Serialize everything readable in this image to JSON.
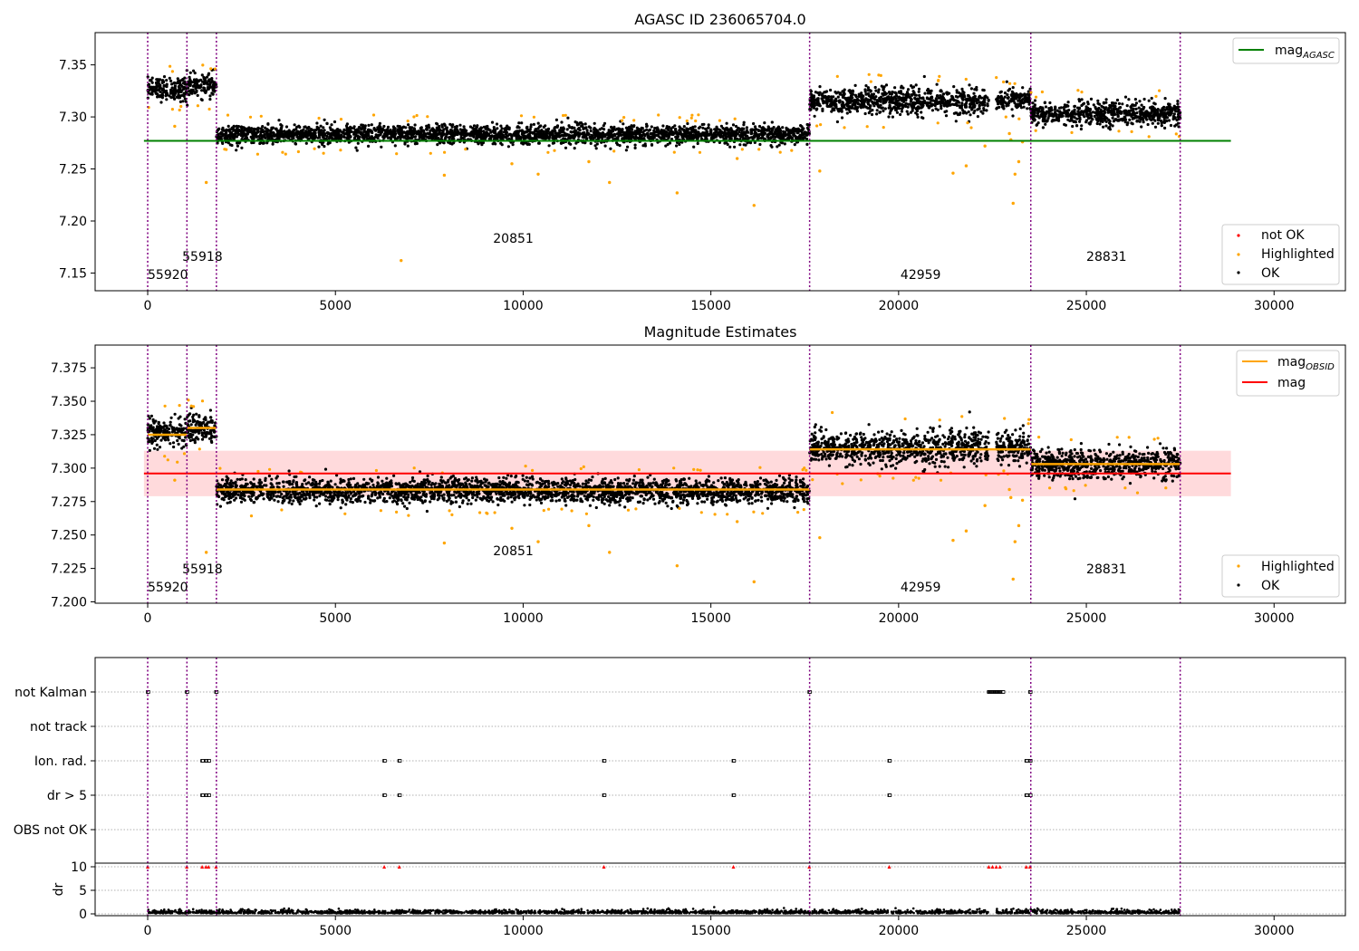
{
  "colors": {
    "ok": "#000000",
    "highlighted": "#ffa500",
    "not_ok": "#ff0000",
    "agasc_line": "#008000",
    "mag_line": "#ff0000",
    "mag_band": "#ffdadc",
    "obsid_line": "#ffa500",
    "obs_boundary": "#800080",
    "grid": "#b0b0b0"
  },
  "obs_boundaries": [
    0,
    1045,
    1830,
    17630,
    23520,
    27500
  ],
  "obsids": [
    {
      "label": "55920",
      "x": 0,
      "level": "low"
    },
    {
      "label": "55918",
      "x": 920,
      "level": "mid"
    },
    {
      "label": "20851",
      "x": 9200,
      "level": "high"
    },
    {
      "label": "42959",
      "x": 20050,
      "level": "low"
    },
    {
      "label": "28831",
      "x": 25000,
      "level": "mid"
    }
  ],
  "chart_data": [
    {
      "type": "scatter",
      "title": "AGASC ID 236065704.0",
      "xlim": [
        -1400,
        31900
      ],
      "ylim": [
        7.133,
        7.381
      ],
      "x_ticks": [
        0,
        5000,
        10000,
        15000,
        20000,
        25000,
        30000
      ],
      "x_tick_labels": [
        "0",
        "5000",
        "10000",
        "15000",
        "20000",
        "25000",
        "30000"
      ],
      "y_ticks": [
        7.15,
        7.2,
        7.25,
        7.3,
        7.35
      ],
      "y_tick_labels": [
        "7.15",
        "7.20",
        "7.25",
        "7.30",
        "7.35"
      ],
      "segments": [
        {
          "x": [
            0,
            1045
          ],
          "mean": 7.327,
          "spread": 0.006
        },
        {
          "x": [
            1045,
            1830
          ],
          "mean": 7.33,
          "spread": 0.006
        },
        {
          "x": [
            1830,
            17630
          ],
          "mean": 7.283,
          "spread": 0.005
        },
        {
          "x": [
            17630,
            22400
          ],
          "mean": 7.315,
          "spread": 0.007
        },
        {
          "x": [
            22600,
            23520
          ],
          "mean": 7.316,
          "spread": 0.006
        },
        {
          "x": [
            23520,
            27500
          ],
          "mean": 7.303,
          "spread": 0.006
        }
      ],
      "highlighted_outliers": [
        [
          720,
          7.291
        ],
        [
          1560,
          7.237
        ],
        [
          6750,
          7.162
        ],
        [
          7900,
          7.244
        ],
        [
          9700,
          7.255
        ],
        [
          10400,
          7.245
        ],
        [
          11750,
          7.257
        ],
        [
          12300,
          7.237
        ],
        [
          14100,
          7.227
        ],
        [
          15700,
          7.26
        ],
        [
          16150,
          7.215
        ],
        [
          17900,
          7.248
        ],
        [
          21450,
          7.246
        ],
        [
          21800,
          7.253
        ],
        [
          22300,
          7.272
        ],
        [
          22950,
          7.284
        ],
        [
          22990,
          7.278
        ],
        [
          23050,
          7.217
        ],
        [
          23100,
          7.245
        ],
        [
          23200,
          7.257
        ],
        [
          23300,
          7.276
        ]
      ],
      "lines": [
        {
          "name": "mag_AGASC",
          "name_main": "mag",
          "name_sub": "AGASC",
          "x": [
            -100,
            28850
          ],
          "y": 7.277,
          "color": "#008000"
        }
      ],
      "legend_top": {
        "placement": "upper right",
        "entries": [
          {
            "main": "mag",
            "sub": "AGASC",
            "color": "#008000"
          }
        ]
      },
      "legend_bottom": {
        "placement": "lower right",
        "entries": [
          "not OK",
          "Highlighted",
          "OK"
        ]
      }
    },
    {
      "type": "scatter",
      "title": "Magnitude Estimates",
      "xlim": [
        -1400,
        31900
      ],
      "ylim": [
        7.199,
        7.392
      ],
      "x_ticks": [
        0,
        5000,
        10000,
        15000,
        20000,
        25000,
        30000
      ],
      "x_tick_labels": [
        "0",
        "5000",
        "10000",
        "15000",
        "20000",
        "25000",
        "30000"
      ],
      "y_ticks": [
        7.2,
        7.225,
        7.25,
        7.275,
        7.3,
        7.325,
        7.35,
        7.375
      ],
      "y_tick_labels": [
        "7.200",
        "7.225",
        "7.250",
        "7.275",
        "7.300",
        "7.325",
        "7.350",
        "7.375"
      ],
      "mag": 7.296,
      "mag_band": [
        7.279,
        7.313
      ],
      "obsid_means": [
        {
          "x": [
            0,
            1045
          ],
          "y": 7.325
        },
        {
          "x": [
            1045,
            1830
          ],
          "y": 7.33
        },
        {
          "x": [
            1830,
            17630
          ],
          "y": 7.284
        },
        {
          "x": [
            17630,
            23520
          ],
          "y": 7.314
        },
        {
          "x": [
            23520,
            27500
          ],
          "y": 7.303
        }
      ],
      "legend_top": {
        "placement": "upper right",
        "entries": [
          {
            "main": "mag",
            "sub": "OBSID",
            "color": "#ffa500"
          },
          {
            "main": "mag",
            "sub": "",
            "color": "#ff0000"
          }
        ]
      },
      "legend_bottom": {
        "placement": "lower right",
        "entries": [
          "Highlighted",
          "OK"
        ]
      }
    },
    {
      "type": "scatter",
      "title": "",
      "flag_rows": [
        "not Kalman",
        "not track",
        "Ion. rad.",
        "dr > 5",
        "OBS not OK"
      ],
      "flag_points": {
        "not Kalman": [
          0,
          1040,
          1820,
          17620,
          22400,
          22500,
          22600,
          22700,
          23500
        ],
        "not track": [],
        "Ion. rad.": [
          1450,
          1550,
          1620,
          6300,
          6700,
          12150,
          15600,
          19750,
          23400,
          23500
        ],
        "dr > 5": [
          1450,
          1550,
          1620,
          6300,
          6700,
          12150,
          15600,
          19750,
          23400,
          23500
        ],
        "OBS not OK": []
      },
      "dr_ylabel": "dr",
      "dr_ticks": [
        0,
        5,
        10
      ],
      "dr_tick_labels": [
        "0",
        "5",
        "10"
      ],
      "dr_flagged_x": [
        0,
        1040,
        1820,
        1450,
        1550,
        1620,
        6300,
        6700,
        12150,
        15600,
        17620,
        19750,
        22400,
        22500,
        22600,
        22700,
        23400,
        23500
      ],
      "x_ticks": [
        0,
        5000,
        10000,
        15000,
        20000,
        25000,
        30000
      ],
      "x_tick_labels": [
        "0",
        "5000",
        "10000",
        "15000",
        "20000",
        "25000",
        "30000"
      ]
    }
  ]
}
